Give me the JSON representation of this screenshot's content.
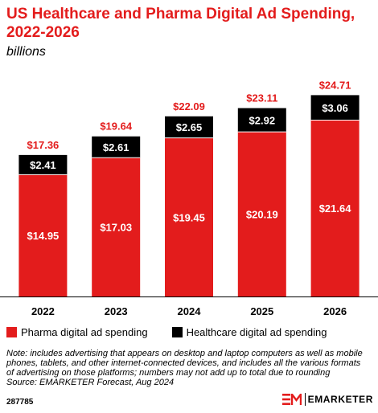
{
  "header": {
    "title_line1": "US Healthcare and Pharma Digital Ad Spending,",
    "title_line2": "2022-2026",
    "subtitle": "billions"
  },
  "chart_data": {
    "type": "bar",
    "stacked": true,
    "categories": [
      "2022",
      "2023",
      "2024",
      "2025",
      "2026"
    ],
    "series": [
      {
        "name": "Pharma digital ad spending",
        "color": "#e31c1c",
        "values": [
          14.95,
          17.03,
          19.45,
          20.19,
          21.64
        ],
        "labels": [
          "$14.95",
          "$17.03",
          "$19.45",
          "$20.19",
          "$21.64"
        ]
      },
      {
        "name": "Healthcare digital ad spending",
        "color": "#000000",
        "values": [
          2.41,
          2.61,
          2.65,
          2.92,
          3.06
        ],
        "labels": [
          "$2.41",
          "$2.61",
          "$2.65",
          "$2.92",
          "$3.06"
        ]
      }
    ],
    "totals": [
      17.36,
      19.64,
      22.09,
      23.11,
      24.71
    ],
    "total_labels": [
      "$17.36",
      "$19.64",
      "$22.09",
      "$23.11",
      "$24.71"
    ],
    "ylim": [
      0,
      27.5
    ],
    "grid": false,
    "legend_position": "bottom-left",
    "total_label_color": "#e31c1c"
  },
  "footer": {
    "note_lines": [
      "Note: includes advertising that appears on desktop and laptop computers as well as mobile",
      "phones, tablets, and other internet-connected devices, and includes all the various formats",
      "of advertising on those platforms; numbers may not add up to total due to rounding",
      "Source: EMARKETER Forecast, Aug 2024"
    ],
    "chart_id": "287785",
    "brand": "EMARKETER",
    "brand_icon": "emarketer-logo-icon"
  }
}
